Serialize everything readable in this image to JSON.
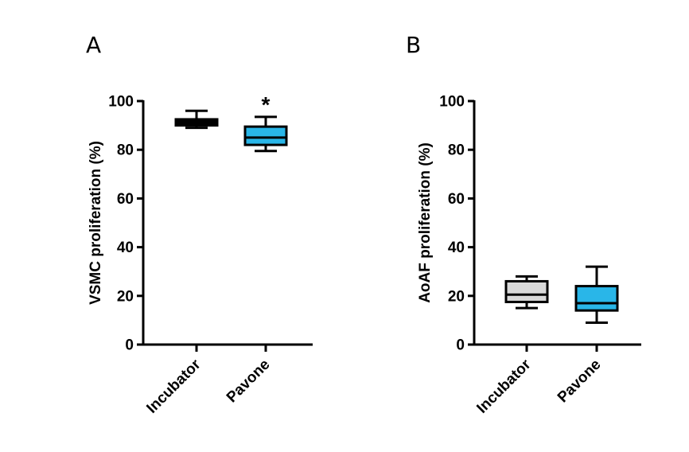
{
  "chart_data": [
    {
      "type": "box",
      "panel": "A",
      "ylabel": "VSMC proliferation (%)",
      "ylim": [
        0,
        100
      ],
      "yticks": [
        "0",
        "20",
        "40",
        "60",
        "80",
        "100"
      ],
      "categories": [
        "Incubator",
        "Pavone"
      ],
      "boxes": [
        {
          "category": "Incubator",
          "min": 89,
          "q1": 90,
          "median": 91.5,
          "q3": 92.5,
          "max": 96,
          "fill": "#000000",
          "annotation": ""
        },
        {
          "category": "Pavone",
          "min": 79.5,
          "q1": 82,
          "median": 85,
          "q3": 89.5,
          "max": 93.5,
          "fill": "#29b6e8",
          "annotation": "*"
        }
      ],
      "grid": false
    },
    {
      "type": "box",
      "panel": "B",
      "ylabel": "AoAF proliferation (%)",
      "ylim": [
        0,
        100
      ],
      "yticks": [
        "0",
        "20",
        "40",
        "60",
        "80",
        "100"
      ],
      "categories": [
        "Incubator",
        "Pavone"
      ],
      "boxes": [
        {
          "category": "Incubator",
          "min": 15,
          "q1": 17.5,
          "median": 20.5,
          "q3": 26,
          "max": 28,
          "fill": "#d9d9d9",
          "annotation": ""
        },
        {
          "category": "Pavone",
          "min": 9,
          "q1": 14,
          "median": 17,
          "q3": 24,
          "max": 32,
          "fill": "#29b6e8",
          "annotation": ""
        }
      ],
      "grid": false
    }
  ]
}
